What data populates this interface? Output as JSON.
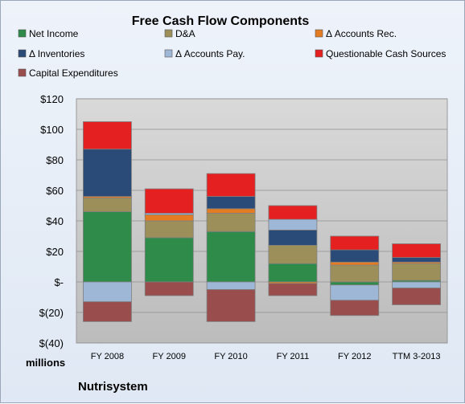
{
  "chart_data": {
    "type": "bar",
    "stacked": true,
    "title": "Free Cash Flow Components",
    "categories": [
      "FY 2008",
      "FY 2009",
      "FY 2010",
      "FY 2011",
      "FY 2012",
      "TTM 3-2013"
    ],
    "ylabel": "millions",
    "ylim": [
      -40,
      120
    ],
    "yticks": [
      {
        "value": 120,
        "label": "$120"
      },
      {
        "value": 100,
        "label": "$100"
      },
      {
        "value": 80,
        "label": "$80"
      },
      {
        "value": 60,
        "label": "$60"
      },
      {
        "value": 40,
        "label": "$40"
      },
      {
        "value": 20,
        "label": "$20"
      },
      {
        "value": 0,
        "label": "$-"
      },
      {
        "value": -20,
        "label": "$(20)"
      },
      {
        "value": -40,
        "label": "$(40)"
      }
    ],
    "grid": true,
    "legend_position": "top",
    "series": [
      {
        "name": "Net Income",
        "color": "#2e8b4a",
        "values": [
          46,
          29,
          33,
          12,
          -2,
          1
        ]
      },
      {
        "name": "D&A",
        "color": "#9c8f5a",
        "values": [
          9,
          11,
          12,
          12,
          11,
          11
        ]
      },
      {
        "name": "Δ Accounts Rec.",
        "color": "#e37c22",
        "values": [
          1,
          4,
          3,
          -1,
          2,
          1
        ]
      },
      {
        "name": "Δ Inventories",
        "color": "#2a4a77",
        "values": [
          31,
          0,
          8,
          10,
          8,
          3
        ]
      },
      {
        "name": "Δ Accounts Pay.",
        "color": "#9fb7d6",
        "values": [
          -13,
          1,
          -5,
          7,
          -10,
          -4
        ]
      },
      {
        "name": "Questionable Cash Sources",
        "color": "#e52021",
        "values": [
          18,
          16,
          15,
          9,
          9,
          9
        ]
      },
      {
        "name": "Capital Expenditures",
        "color": "#9a4d4d",
        "values": [
          -13,
          -9,
          -21,
          -8,
          -10,
          -11
        ]
      }
    ]
  },
  "company_label": "Nutrisystem"
}
